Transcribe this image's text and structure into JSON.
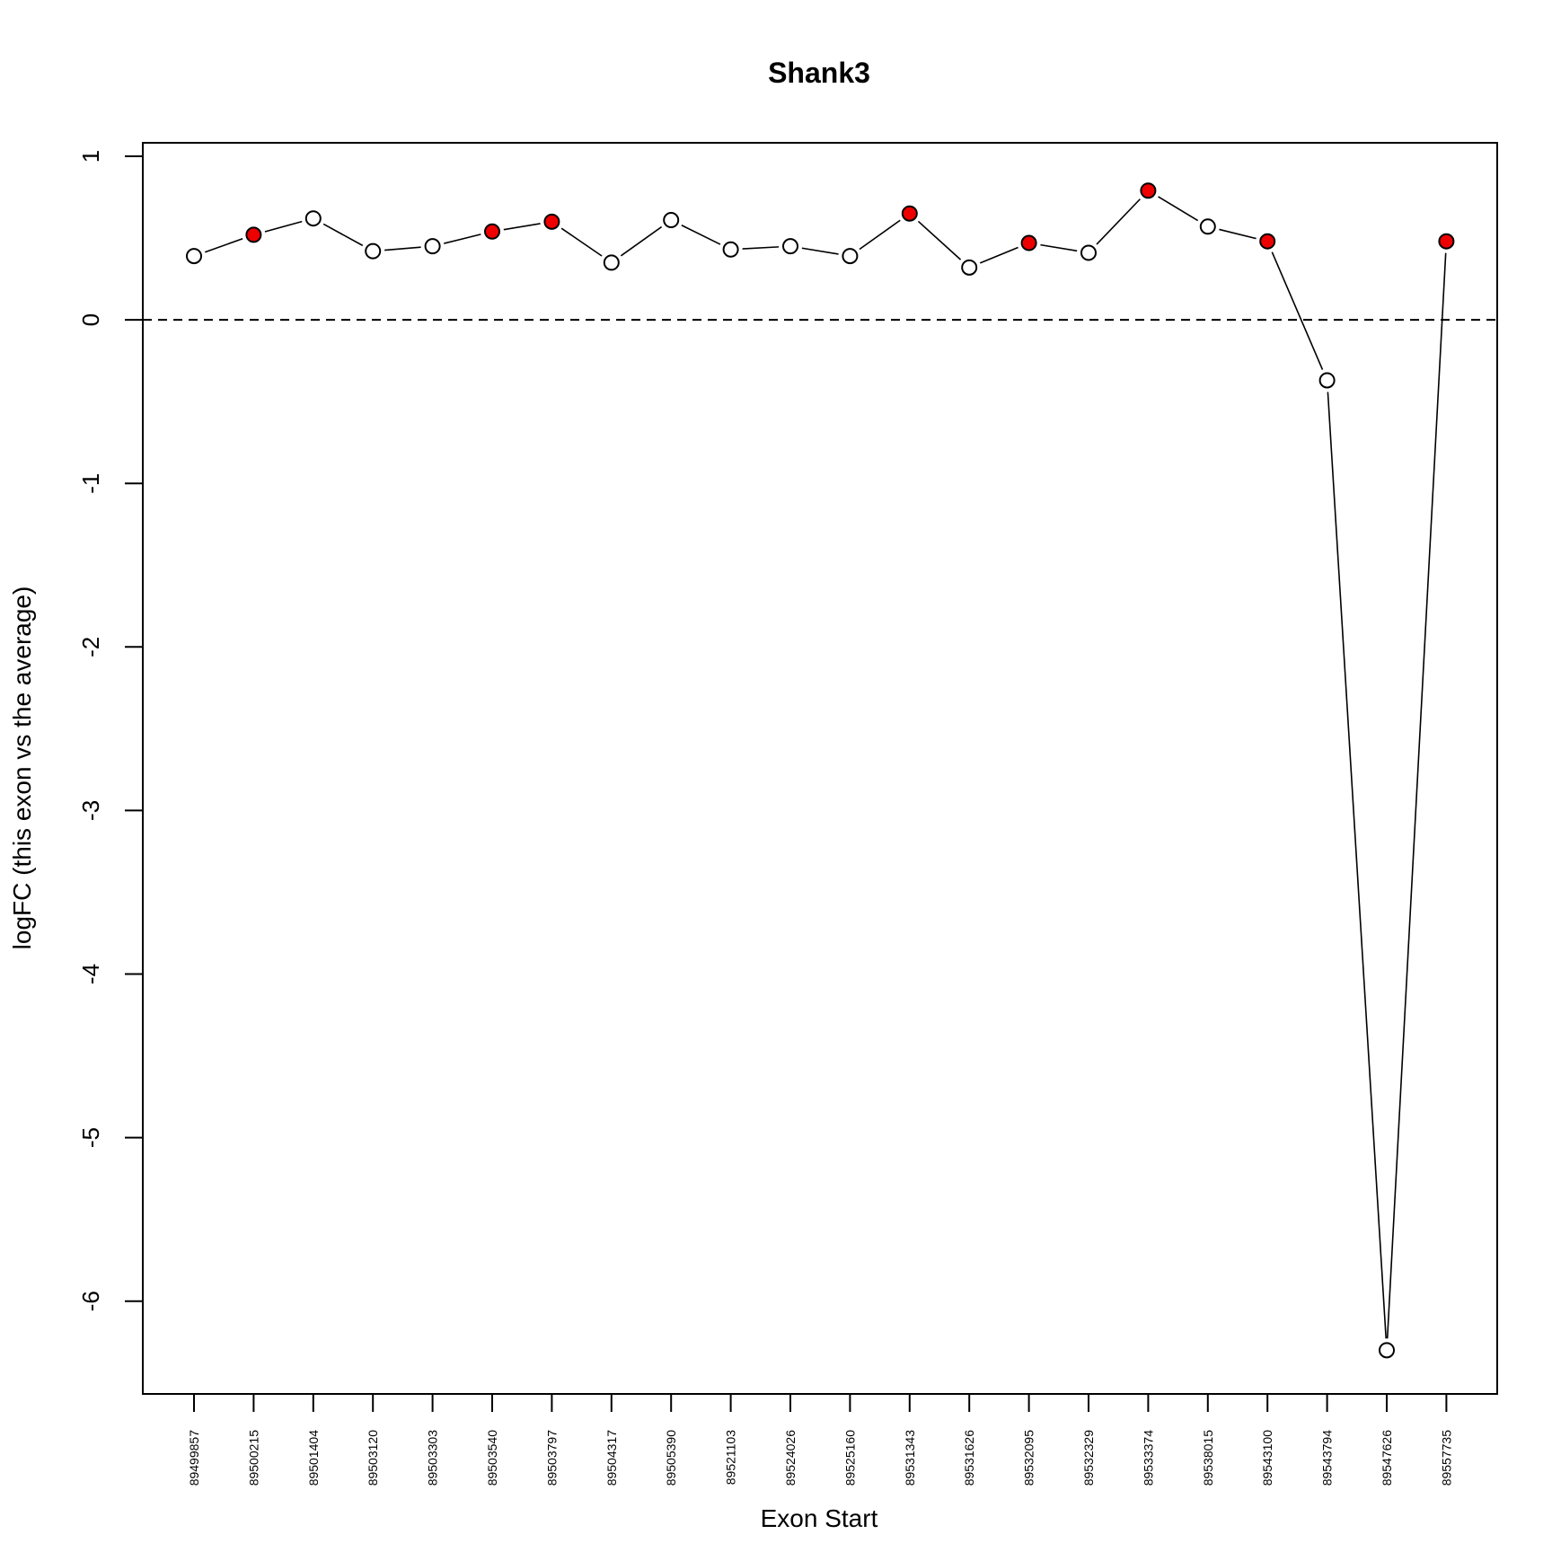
{
  "chart_data": {
    "type": "line",
    "title": "Shank3",
    "xlabel": "Exon Start",
    "ylabel": "logFC (this exon vs the average)",
    "ylim": [
      -6.6,
      1.1
    ],
    "yticks": [
      1,
      0,
      -1,
      -2,
      -3,
      -4,
      -5,
      -6
    ],
    "grid": false,
    "legend": "none",
    "reference_line": {
      "y": 0,
      "style": "dashed"
    },
    "categories": [
      "89499857",
      "89500215",
      "89501404",
      "89503120",
      "89503303",
      "89503540",
      "89503797",
      "89504317",
      "89505390",
      "89521103",
      "89524026",
      "89525160",
      "89531343",
      "89531626",
      "89532095",
      "89532329",
      "89533374",
      "89538015",
      "89543100",
      "89543794",
      "89547626",
      "89557735"
    ],
    "series": [
      {
        "values": [
          0.39,
          0.52,
          0.62,
          0.42,
          0.45,
          0.54,
          0.6,
          0.35,
          0.61,
          0.43,
          0.45,
          0.39,
          0.65,
          0.32,
          0.47,
          0.41,
          0.79,
          0.57,
          0.48,
          -0.37,
          -6.3,
          0.48
        ],
        "highlighted": [
          false,
          true,
          false,
          false,
          false,
          true,
          true,
          false,
          false,
          false,
          false,
          false,
          true,
          false,
          true,
          false,
          true,
          false,
          true,
          false,
          false,
          true
        ]
      }
    ],
    "colors": {
      "highlight": "#ee0000",
      "normal": "#ffffff",
      "line": "#000000"
    }
  }
}
